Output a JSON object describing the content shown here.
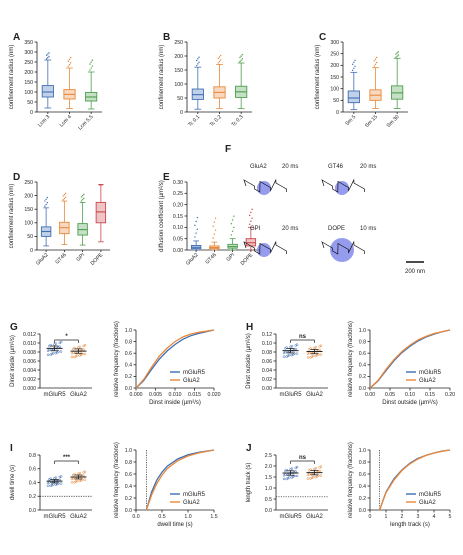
{
  "panels": {
    "A": {
      "letter": "A",
      "ylabel": "confinement radius (nm)",
      "yticks": [
        "0",
        "50",
        "100",
        "150",
        "200",
        "250",
        "300",
        "350"
      ],
      "ymax": 350,
      "categories": [
        "Lcm 3",
        "Lcm 4",
        "Lcm 5.5"
      ],
      "colors": [
        "#3f6fb5",
        "#e8883a",
        "#4d9e4d"
      ],
      "boxes": [
        [
          20,
          75,
          100,
          132,
          260
        ],
        [
          18,
          65,
          88,
          112,
          220
        ],
        [
          15,
          55,
          75,
          98,
          200
        ]
      ]
    },
    "B": {
      "letter": "B",
      "ylabel": "confinement radius (nm)",
      "yticks": [
        "0",
        "50",
        "100",
        "150",
        "200",
        "250"
      ],
      "ymax": 250,
      "categories": [
        "Tc 0.1",
        "Tc 0.2",
        "Tc 0.3"
      ],
      "colors": [
        "#3f6fb5",
        "#e8883a",
        "#4d9e4d"
      ],
      "boxes": [
        [
          10,
          45,
          62,
          82,
          160
        ],
        [
          12,
          50,
          70,
          90,
          170
        ],
        [
          12,
          52,
          72,
          92,
          175
        ]
      ]
    },
    "C": {
      "letter": "C",
      "ylabel": "confinement radius (nm)",
      "yticks": [
        "0",
        "50",
        "100",
        "150",
        "200",
        "250",
        "300"
      ],
      "ymax": 300,
      "categories": [
        "Sm 5",
        "Sm 15",
        "Sm 30"
      ],
      "colors": [
        "#3f6fb5",
        "#e8883a",
        "#4d9e4d"
      ],
      "boxes": [
        [
          10,
          40,
          60,
          90,
          170
        ],
        [
          15,
          50,
          72,
          95,
          190
        ],
        [
          15,
          55,
          82,
          112,
          230
        ]
      ]
    },
    "D": {
      "letter": "D",
      "ylabel": "confinement radius (nm)",
      "yticks": [
        "0",
        "50",
        "100",
        "150",
        "200",
        "250"
      ],
      "ymax": 250,
      "categories": [
        "GluA2",
        "GT46",
        "GPI",
        "DOPE"
      ],
      "colors": [
        "#3f6fb5",
        "#e8883a",
        "#4d9e4d",
        "#c9474d"
      ],
      "boxes": [
        [
          15,
          50,
          68,
          85,
          155
        ],
        [
          20,
          60,
          82,
          102,
          180
        ],
        [
          18,
          55,
          75,
          97,
          175
        ],
        [
          30,
          100,
          140,
          175,
          240
        ]
      ]
    },
    "E": {
      "letter": "E",
      "ylabel": "diffusion coefficient (µm²/s)",
      "yticks": [
        "0.00",
        "0.05",
        "0.10",
        "0.15",
        "0.20",
        "0.25",
        "0.30"
      ],
      "ymax": 0.3,
      "categories": [
        "GluA2",
        "GT46",
        "GPI",
        "DOPE"
      ],
      "colors": [
        "#3f6fb5",
        "#e8883a",
        "#4d9e4d",
        "#c9474d"
      ],
      "boxes": [
        [
          0.0,
          0.006,
          0.012,
          0.02,
          0.04
        ],
        [
          0.0,
          0.006,
          0.011,
          0.018,
          0.035
        ],
        [
          0.0,
          0.008,
          0.015,
          0.025,
          0.05
        ],
        [
          0.0,
          0.018,
          0.032,
          0.05,
          0.1
        ]
      ]
    },
    "F": {
      "letter": "F",
      "tracks": [
        {
          "name": "GluA2",
          "time": "20 ms"
        },
        {
          "name": "GT46",
          "time": "20 ms"
        },
        {
          "name": "GPI",
          "time": "20 ms"
        },
        {
          "name": "DOPE",
          "time": "10 ms"
        }
      ],
      "scale_label": "200 nm"
    },
    "G": {
      "letter": "G",
      "ylabel": "Dinst inside (µm²/s)",
      "yticks": [
        "0.000",
        "0.002",
        "0.004",
        "0.006",
        "0.008",
        "0.010",
        "0.012"
      ],
      "sig": "*",
      "groups": [
        "mGluR5",
        "GluA2"
      ],
      "means": [
        0.0088,
        0.0082
      ],
      "ymax": 0.012,
      "cdf_xlabel": "Dinst inside (µm²/s)",
      "cdf_xticks": [
        "0.000",
        "0.005",
        "0.010",
        "0.015",
        "0.020"
      ],
      "xmax": 0.02,
      "cdf_ylabel": "relative frequency (fractions)",
      "cdf_yticks": [
        "0.0",
        "0.2",
        "0.4",
        "0.6",
        "0.8",
        "1.0"
      ],
      "legend": [
        "mGluR5",
        "GluA2"
      ]
    },
    "H": {
      "letter": "H",
      "ylabel": "Dinst outside (µm²/s)",
      "yticks": [
        "0.00",
        "0.02",
        "0.04",
        "0.06",
        "0.08",
        "0.10",
        "0.12"
      ],
      "sig": "ns",
      "groups": [
        "mGluR5",
        "GluA2"
      ],
      "means": [
        0.083,
        0.081
      ],
      "ymax": 0.12,
      "cdf_xlabel": "Dinst outside (µm²/s)",
      "cdf_xticks": [
        "0.00",
        "0.05",
        "0.10",
        "0.15",
        "0.20"
      ],
      "xmax": 0.2,
      "cdf_ylabel": "relative frequency (fractions)",
      "cdf_yticks": [
        "0.0",
        "0.2",
        "0.4",
        "0.6",
        "0.8",
        "1.0"
      ],
      "legend": [
        "mGluR5",
        "GluA2"
      ]
    },
    "I": {
      "letter": "I",
      "ylabel": "dwell time (s)",
      "yticks": [
        "0.0",
        "0.2",
        "0.4",
        "0.6",
        "0.8"
      ],
      "sig": "***",
      "groups": [
        "mGluR5",
        "GluA2"
      ],
      "means": [
        0.42,
        0.48
      ],
      "ymax": 0.8,
      "dotted": 0.2,
      "cdf_xlabel": "dwell time (s)",
      "cdf_xticks": [
        "0.0",
        "0.5",
        "1.0",
        "1.5"
      ],
      "xmax": 1.5,
      "vline": 0.2,
      "cdf_ylabel": "relative frequency (fractions)",
      "cdf_yticks": [
        "0.0",
        "0.2",
        "0.4",
        "0.6",
        "0.8",
        "1.0"
      ],
      "legend": [
        "mGluR5",
        "GluA2"
      ]
    },
    "J": {
      "letter": "J",
      "ylabel": "length track (s)",
      "yticks": [
        "0.0",
        "0.5",
        "1.0",
        "1.5",
        "2.0",
        "2.5"
      ],
      "sig": "ns",
      "groups": [
        "mGluR5",
        "GluA2"
      ],
      "means": [
        1.68,
        1.7
      ],
      "ymax": 2.5,
      "dotted": 0.6,
      "cdf_xlabel": "length track (s)",
      "cdf_xticks": [
        "0",
        "1",
        "2",
        "3",
        "4",
        "5"
      ],
      "xmax": 5,
      "vline": 0.6,
      "cdf_ylabel": "relative frequency (fractions)",
      "cdf_yticks": [
        "0.0",
        "0.2",
        "0.4",
        "0.6",
        "0.8",
        "1.0"
      ],
      "legend": [
        "mGluR5",
        "GluA2"
      ]
    }
  },
  "chart_data": [
    {
      "type": "box",
      "ylabel": "confinement radius (nm)",
      "categories": [
        "Lcm 3",
        "Lcm 4",
        "Lcm 5.5"
      ],
      "ylim": [
        0,
        350
      ],
      "stats_min_q1_median_q3_max": [
        [
          20,
          75,
          100,
          132,
          260
        ],
        [
          18,
          65,
          88,
          112,
          220
        ],
        [
          15,
          55,
          75,
          98,
          200
        ]
      ]
    },
    {
      "type": "box",
      "ylabel": "confinement radius (nm)",
      "categories": [
        "Tc 0.1",
        "Tc 0.2",
        "Tc 0.3"
      ],
      "ylim": [
        0,
        250
      ],
      "stats_min_q1_median_q3_max": [
        [
          10,
          45,
          62,
          82,
          160
        ],
        [
          12,
          50,
          70,
          90,
          170
        ],
        [
          12,
          52,
          72,
          92,
          175
        ]
      ]
    },
    {
      "type": "box",
      "ylabel": "confinement radius (nm)",
      "categories": [
        "Sm 5",
        "Sm 15",
        "Sm 30"
      ],
      "ylim": [
        0,
        300
      ],
      "stats_min_q1_median_q3_max": [
        [
          10,
          40,
          60,
          90,
          170
        ],
        [
          15,
          50,
          72,
          95,
          190
        ],
        [
          15,
          55,
          82,
          112,
          230
        ]
      ]
    },
    {
      "type": "box",
      "ylabel": "confinement radius (nm)",
      "categories": [
        "GluA2",
        "GT46",
        "GPI",
        "DOPE"
      ],
      "ylim": [
        0,
        250
      ],
      "stats_min_q1_median_q3_max": [
        [
          15,
          50,
          68,
          85,
          155
        ],
        [
          20,
          60,
          82,
          102,
          180
        ],
        [
          18,
          55,
          75,
          97,
          175
        ],
        [
          30,
          100,
          140,
          175,
          240
        ]
      ]
    },
    {
      "type": "box",
      "ylabel": "diffusion coefficient (µm²/s)",
      "categories": [
        "GluA2",
        "GT46",
        "GPI",
        "DOPE"
      ],
      "ylim": [
        0,
        0.3
      ],
      "stats_min_q1_median_q3_max": [
        [
          0.0,
          0.006,
          0.012,
          0.02,
          0.04
        ],
        [
          0.0,
          0.006,
          0.011,
          0.018,
          0.035
        ],
        [
          0.0,
          0.008,
          0.015,
          0.025,
          0.05
        ],
        [
          0.0,
          0.018,
          0.032,
          0.05,
          0.1
        ]
      ]
    },
    {
      "type": "scatter",
      "ylabel": "Dinst inside (µm²/s)",
      "categories": [
        "mGluR5",
        "GluA2"
      ],
      "means": [
        0.0088,
        0.0082
      ],
      "ylim": [
        0,
        0.012
      ],
      "significance": "*"
    },
    {
      "type": "line",
      "xlabel": "Dinst inside (µm²/s)",
      "ylabel": "relative frequency (fractions)",
      "xlim": [
        0,
        0.02
      ],
      "ylim": [
        0,
        1
      ],
      "series": [
        {
          "name": "mGluR5",
          "x": [
            0,
            0.002,
            0.004,
            0.006,
            0.008,
            0.01,
            0.012,
            0.014,
            0.016,
            0.018,
            0.02
          ],
          "y": [
            0,
            0.13,
            0.32,
            0.5,
            0.64,
            0.75,
            0.84,
            0.9,
            0.94,
            0.97,
            1.0
          ]
        },
        {
          "name": "GluA2",
          "x": [
            0,
            0.002,
            0.004,
            0.006,
            0.008,
            0.01,
            0.012,
            0.014,
            0.016,
            0.018,
            0.02
          ],
          "y": [
            0,
            0.15,
            0.36,
            0.55,
            0.69,
            0.8,
            0.88,
            0.93,
            0.96,
            0.98,
            1.0
          ]
        }
      ]
    },
    {
      "type": "scatter",
      "ylabel": "Dinst outside (µm²/s)",
      "categories": [
        "mGluR5",
        "GluA2"
      ],
      "means": [
        0.083,
        0.081
      ],
      "ylim": [
        0,
        0.12
      ],
      "significance": "ns"
    },
    {
      "type": "line",
      "xlabel": "Dinst outside (µm²/s)",
      "ylabel": "relative frequency (fractions)",
      "xlim": [
        0,
        0.2
      ],
      "ylim": [
        0,
        1
      ],
      "series": [
        {
          "name": "mGluR5",
          "x": [
            0,
            0.02,
            0.04,
            0.06,
            0.08,
            0.1,
            0.12,
            0.14,
            0.16,
            0.18,
            0.2
          ],
          "y": [
            0,
            0.12,
            0.3,
            0.47,
            0.61,
            0.72,
            0.81,
            0.88,
            0.93,
            0.97,
            1.0
          ]
        },
        {
          "name": "GluA2",
          "x": [
            0,
            0.02,
            0.04,
            0.06,
            0.08,
            0.1,
            0.12,
            0.14,
            0.16,
            0.18,
            0.2
          ],
          "y": [
            0,
            0.13,
            0.32,
            0.49,
            0.63,
            0.74,
            0.83,
            0.89,
            0.94,
            0.97,
            1.0
          ]
        }
      ]
    },
    {
      "type": "scatter",
      "ylabel": "dwell time (s)",
      "categories": [
        "mGluR5",
        "GluA2"
      ],
      "means": [
        0.42,
        0.48
      ],
      "ylim": [
        0,
        0.8
      ],
      "significance": "***"
    },
    {
      "type": "line",
      "xlabel": "dwell time (s)",
      "ylabel": "relative frequency (fractions)",
      "xlim": [
        0,
        1.5
      ],
      "ylim": [
        0,
        1
      ],
      "series": [
        {
          "name": "mGluR5",
          "x": [
            0.2,
            0.3,
            0.4,
            0.5,
            0.6,
            0.8,
            1.0,
            1.2,
            1.5
          ],
          "y": [
            0,
            0.3,
            0.5,
            0.63,
            0.73,
            0.85,
            0.92,
            0.96,
            1.0
          ]
        },
        {
          "name": "GluA2",
          "x": [
            0.2,
            0.3,
            0.4,
            0.5,
            0.6,
            0.8,
            1.0,
            1.2,
            1.5
          ],
          "y": [
            0,
            0.25,
            0.44,
            0.58,
            0.69,
            0.82,
            0.9,
            0.95,
            1.0
          ]
        }
      ]
    },
    {
      "type": "scatter",
      "ylabel": "length track (s)",
      "categories": [
        "mGluR5",
        "GluA2"
      ],
      "means": [
        1.68,
        1.7
      ],
      "ylim": [
        0,
        2.5
      ],
      "significance": "ns"
    },
    {
      "type": "line",
      "xlabel": "length track (s)",
      "ylabel": "relative frequency (fractions)",
      "xlim": [
        0,
        5
      ],
      "ylim": [
        0,
        1
      ],
      "series": [
        {
          "name": "mGluR5",
          "x": [
            0.6,
            1,
            1.5,
            2,
            2.5,
            3,
            3.5,
            4,
            4.5,
            5
          ],
          "y": [
            0,
            0.3,
            0.52,
            0.67,
            0.78,
            0.86,
            0.91,
            0.95,
            0.98,
            1.0
          ]
        },
        {
          "name": "GluA2",
          "x": [
            0.6,
            1,
            1.5,
            2,
            2.5,
            3,
            3.5,
            4,
            4.5,
            5
          ],
          "y": [
            0,
            0.29,
            0.5,
            0.66,
            0.77,
            0.85,
            0.91,
            0.95,
            0.98,
            1.0
          ]
        }
      ]
    }
  ]
}
